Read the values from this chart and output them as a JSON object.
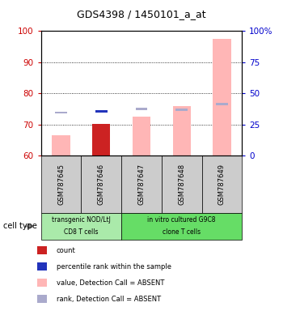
{
  "title": "GDS4398 / 1450101_a_at",
  "samples": [
    "GSM787645",
    "GSM787646",
    "GSM787647",
    "GSM787648",
    "GSM787649"
  ],
  "ylim": [
    60,
    100
  ],
  "yticks_left": [
    60,
    70,
    80,
    90,
    100
  ],
  "yticks_right": [
    0,
    25,
    50,
    75,
    100
  ],
  "ytick_labels_right": [
    "0",
    "25",
    "50",
    "75",
    "100%"
  ],
  "value_bars": [
    66.5,
    70.2,
    72.5,
    76.0,
    97.5
  ],
  "value_bar_colors": [
    "#ffb6b6",
    "#cc2222",
    "#ffb6b6",
    "#ffb6b6",
    "#ffb6b6"
  ],
  "rank_squares": [
    73.8,
    74.2,
    75.0,
    74.8,
    76.5
  ],
  "rank_square_colors": [
    "#aaaacc",
    "#2233bb",
    "#aaaacc",
    "#aaaacc",
    "#aaaacc"
  ],
  "bar_bottom": 60,
  "group1_label1": "transgenic NOD/LtJ",
  "group1_label2": "CD8 T cells",
  "group2_label1": "in vitro cultured G9C8",
  "group2_label2": "clone T cells",
  "cell_type_label": "cell type",
  "legend_items": [
    {
      "color": "#cc2222",
      "label": "count"
    },
    {
      "color": "#2233bb",
      "label": "percentile rank within the sample"
    },
    {
      "color": "#ffb6b6",
      "label": "value, Detection Call = ABSENT"
    },
    {
      "color": "#aaaacc",
      "label": "rank, Detection Call = ABSENT"
    }
  ],
  "left_tick_color": "#cc0000",
  "right_tick_color": "#0000cc",
  "bg_color": "#ffffff",
  "sample_bg": "#cccccc",
  "group1_bg": "#aaeaaa",
  "group2_bg": "#66dd66"
}
